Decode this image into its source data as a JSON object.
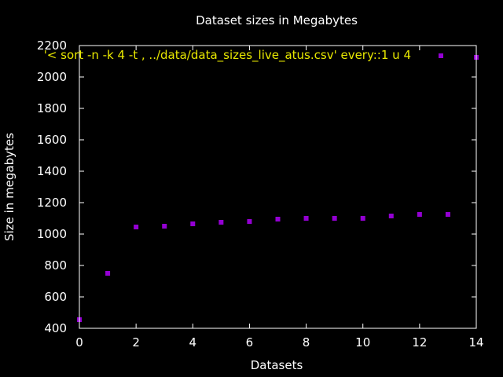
{
  "chart_data": {
    "type": "scatter",
    "title": "Dataset sizes in Megabytes",
    "xlabel": "Datasets",
    "ylabel": "Size in megabytes",
    "xlim": [
      0,
      14
    ],
    "ylim": [
      400,
      2200
    ],
    "xticks": [
      0,
      2,
      4,
      6,
      8,
      10,
      12,
      14
    ],
    "yticks": [
      400,
      600,
      800,
      1000,
      1200,
      1400,
      1600,
      1800,
      2000,
      2200
    ],
    "grid": false,
    "legend_position": "top-right",
    "series": [
      {
        "name": "'< sort -n -k 4 -t , ../data/data_sizes_live_atus.csv' every::1 u 4",
        "color": "#9400d3",
        "x": [
          0,
          1,
          2,
          3,
          4,
          5,
          6,
          7,
          8,
          9,
          10,
          11,
          12,
          13,
          14
        ],
        "y": [
          455,
          750,
          1045,
          1050,
          1065,
          1075,
          1080,
          1095,
          1100,
          1100,
          1100,
          1115,
          1125,
          1125,
          2125
        ]
      }
    ]
  }
}
